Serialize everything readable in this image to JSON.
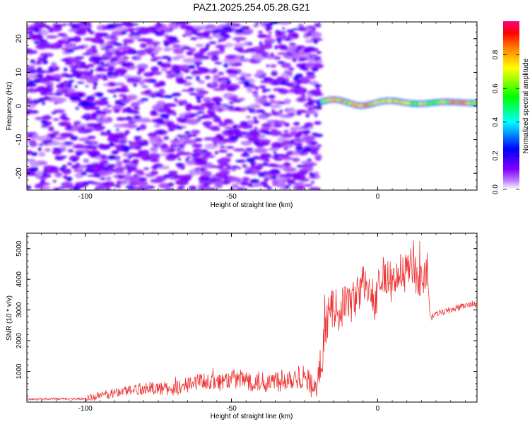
{
  "chart_data": [
    {
      "type": "heatmap",
      "title": "PAZ1.2025.254.05.28.G21",
      "xlabel": "Height of straight line (km)",
      "ylabel": "Frequency (Hz)",
      "xlim": [
        -120,
        34
      ],
      "ylim": [
        -25,
        25
      ],
      "xticks": [
        -100,
        -50,
        0
      ],
      "yticks": [
        -20,
        -10,
        0,
        10,
        20
      ],
      "colorbar": {
        "label": "Normalized spectral amplitude",
        "range": [
          0.0,
          1.0
        ],
        "ticks": [
          "0.0",
          "0.2",
          "0.4",
          "0.6",
          "0.8"
        ],
        "colormap": [
          "#ffffff",
          "#8000ff",
          "#0000ff",
          "#00ffff",
          "#00ff00",
          "#ffff00",
          "#ff8000",
          "#ff0000",
          "#ff0080"
        ]
      },
      "regions": [
        {
          "x_range": [
            -120,
            -20
          ],
          "description": "noise",
          "max_amplitude": 0.25
        },
        {
          "x_range": [
            -20,
            34
          ],
          "description": "signal band near 1 Hz",
          "amplitude_range": [
            0.3,
            0.9
          ]
        }
      ]
    },
    {
      "type": "line",
      "xlabel": "Height of straight line (km)",
      "ylabel": "SNR (10 * v/v)",
      "xlim": [
        -120,
        34
      ],
      "ylim": [
        0,
        5500
      ],
      "xticks": [
        -100,
        -50,
        0
      ],
      "yticks": [
        1000,
        2000,
        3000,
        4000,
        5000
      ],
      "series": [
        {
          "name": "SNR",
          "color": "#ee3333",
          "x": [
            -120,
            -110,
            -100,
            -95,
            -90,
            -85,
            -80,
            -75,
            -70,
            -65,
            -60,
            -55,
            -50,
            -45,
            -40,
            -35,
            -30,
            -25,
            -21,
            -19,
            -17,
            -15,
            -13,
            -11,
            -9,
            -7,
            -5,
            -3,
            -1,
            1,
            3,
            5,
            7,
            9,
            11,
            13,
            15,
            17,
            18,
            20,
            25,
            30,
            34
          ],
          "values": [
            100,
            100,
            110,
            200,
            300,
            400,
            450,
            450,
            420,
            550,
            700,
            650,
            750,
            720,
            650,
            700,
            800,
            850,
            400,
            1500,
            2800,
            3100,
            2900,
            3300,
            3200,
            3500,
            3900,
            3600,
            3300,
            4000,
            4200,
            3800,
            4300,
            4100,
            4400,
            4200,
            4000,
            4300,
            2700,
            2900,
            3000,
            3150,
            3200
          ]
        }
      ]
    }
  ]
}
